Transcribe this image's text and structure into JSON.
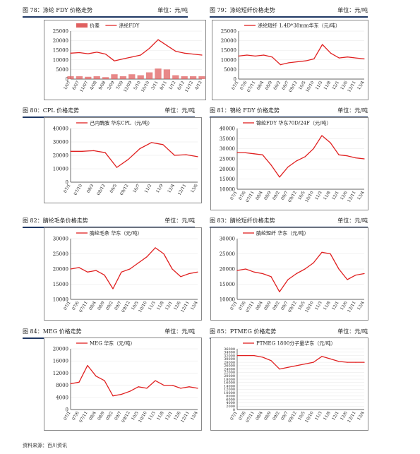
{
  "source": "资料来源：百川资讯",
  "colors": {
    "series": "#e02020",
    "bars": "#e06060",
    "frame": "#888888",
    "heading_rule": "#1f3864"
  },
  "captions": [
    {
      "title": "图 78：涤纶 FDY 价格走势",
      "unit": "单位：元/吨"
    },
    {
      "title": "图 79：涤纶短纤价格走势",
      "unit": "单位：元/吨"
    },
    {
      "title": "图 80：CPL 价格走势",
      "unit": "单位：元/吨"
    },
    {
      "title": "图 81：锦纶 FDY 价格走势",
      "unit": "单位：元/吨"
    },
    {
      "title": "图 82：腈纶毛条价格走势",
      "unit": "单位：元/吨"
    },
    {
      "title": "图 83：腈纶短纤价格走势",
      "unit": "单位：元/吨"
    },
    {
      "title": "图 84：MEG 价格走势",
      "unit": "单位：元/吨"
    },
    {
      "title": "图 85：PTMEG 价格走势",
      "unit": "单位：元/吨"
    }
  ],
  "chart_data": [
    {
      "type": "line",
      "legend": [
        "价差",
        "涤纶FDY"
      ],
      "ylim": [
        0,
        25000
      ],
      "yticks": [
        "25000",
        "20000",
        "15000",
        "10000",
        "5000",
        "0"
      ],
      "xticks": [
        "1/07",
        "6/07",
        "11/07",
        "4/08",
        "9/08",
        "2/09",
        "7/09",
        "12/09",
        "5/10",
        "10/10",
        "3/11",
        "8/11",
        "1/12",
        "6/12",
        "11/12",
        "4/13"
      ],
      "x": [
        "1/07",
        "6/07",
        "11/07",
        "4/08",
        "9/08",
        "2/09",
        "7/09",
        "12/09",
        "5/10",
        "10/10",
        "3/11",
        "8/11",
        "1/12",
        "6/12",
        "11/12",
        "4/13"
      ],
      "series": [
        {
          "name": "涤纶FDY",
          "values": [
            13500,
            13800,
            13200,
            14000,
            13000,
            9500,
            10500,
            11500,
            12500,
            16000,
            20500,
            17500,
            14500,
            13500,
            13000,
            12500
          ]
        },
        {
          "name": "价差",
          "values": [
            1500,
            1500,
            1200,
            1500,
            1000,
            2500,
            1500,
            2500,
            2000,
            3500,
            5500,
            5000,
            2000,
            1500,
            1500,
            1500
          ]
        }
      ]
    },
    {
      "type": "line",
      "legend": [
        "涤纶短纤 1.4D*38mm华东（元/吨）"
      ],
      "ylim": [
        0,
        25000
      ],
      "yticks": [
        "25000",
        "20000",
        "15000",
        "10000",
        "5000",
        "0"
      ],
      "xticks": [
        "07/1",
        "07/6",
        "07/11",
        "08/4",
        "08/9",
        "09/2",
        "09/7",
        "09/12",
        "10/5",
        "10/10",
        "11/3",
        "11/8",
        "12/1",
        "12/6",
        "12/11",
        "13/4"
      ],
      "x": [
        "07/1",
        "07/6",
        "07/11",
        "08/4",
        "08/9",
        "09/2",
        "09/7",
        "09/12",
        "10/5",
        "10/10",
        "11/3",
        "11/8",
        "12/1",
        "12/6",
        "12/11",
        "13/4"
      ],
      "series": [
        {
          "name": "涤纶短纤 1.4D*38mm华东（元/吨）",
          "values": [
            12000,
            12500,
            12000,
            12500,
            11500,
            7500,
            8500,
            9000,
            9500,
            10500,
            18000,
            13500,
            11000,
            11500,
            11000,
            10500
          ]
        }
      ]
    },
    {
      "type": "line",
      "legend": [
        "己内酰胺 华东CPL（元/吨）"
      ],
      "ylim": [
        0,
        40000
      ],
      "yticks": [
        "40000",
        "30000",
        "20000",
        "10000",
        "0"
      ],
      "xticks": [
        "07/1",
        "07/10",
        "08/3",
        "08/12",
        "09/5",
        "09/12",
        "10/7",
        "11/2",
        "11/9",
        "12/4",
        "12/11",
        "13/6"
      ],
      "x": [
        "07/1",
        "07/10",
        "08/3",
        "08/12",
        "09/5",
        "09/12",
        "10/7",
        "11/2",
        "11/9",
        "12/4",
        "12/11",
        "13/6"
      ],
      "series": [
        {
          "name": "己内酰胺 华东CPL（元/吨）",
          "values": [
            23000,
            23000,
            23500,
            22000,
            11000,
            17000,
            25000,
            29500,
            28000,
            20000,
            20500,
            19000
          ]
        }
      ]
    },
    {
      "type": "line",
      "legend": [
        "锦纶FDY 华东70D/24F（元/吨）"
      ],
      "ylim": [
        10000,
        40000
      ],
      "yticks": [
        "40000",
        "35000",
        "30000",
        "25000",
        "20000",
        "15000",
        "10000"
      ],
      "xticks": [
        "07/1",
        "07/6",
        "07/11",
        "08/4",
        "08/9",
        "09/2",
        "09/7",
        "09/12",
        "10/5",
        "10/10",
        "11/3",
        "11/8",
        "12/1",
        "12/6",
        "12/11",
        "13/4"
      ],
      "x": [
        "07/1",
        "07/6",
        "07/11",
        "08/4",
        "08/9",
        "09/2",
        "09/7",
        "09/12",
        "10/5",
        "10/10",
        "11/3",
        "11/8",
        "12/1",
        "12/6",
        "12/11",
        "13/4"
      ],
      "series": [
        {
          "name": "锦纶FDY 华东70D/24F（元/吨）",
          "values": [
            28000,
            28000,
            27500,
            27000,
            22000,
            16000,
            21000,
            24000,
            26000,
            30000,
            36500,
            33000,
            27000,
            26500,
            25500,
            25000
          ]
        }
      ]
    },
    {
      "type": "line",
      "legend": [
        "腈纶毛条 华东（元/吨）"
      ],
      "ylim": [
        10000,
        30000
      ],
      "yticks": [
        "30000",
        "25000",
        "20000",
        "15000",
        "10000"
      ],
      "xticks": [
        "07/1",
        "07/6",
        "07/11",
        "08/4",
        "08/9",
        "09/2",
        "09/7",
        "09/12",
        "10/5",
        "10/10",
        "11/3",
        "11/8",
        "12/1",
        "12/6",
        "12/11",
        "13/4"
      ],
      "x": [
        "07/1",
        "07/6",
        "07/11",
        "08/4",
        "08/9",
        "09/2",
        "09/7",
        "09/12",
        "10/5",
        "10/10",
        "11/3",
        "11/8",
        "12/1",
        "12/6",
        "12/11",
        "13/4"
      ],
      "series": [
        {
          "name": "腈纶毛条 华东（元/吨）",
          "values": [
            20000,
            20500,
            19000,
            19500,
            18000,
            13500,
            19000,
            20000,
            22000,
            24000,
            27000,
            25000,
            20000,
            17500,
            18500,
            19000
          ]
        }
      ]
    },
    {
      "type": "line",
      "legend": [
        "腈纶短纤 华东（元/吨）"
      ],
      "ylim": [
        10000,
        30000
      ],
      "yticks": [
        "30000",
        "25000",
        "20000",
        "15000",
        "10000"
      ],
      "xticks": [
        "07/1",
        "07/6",
        "07/11",
        "08/4",
        "08/9",
        "09/2",
        "09/7",
        "09/12",
        "10/5",
        "10/10",
        "11/3",
        "11/8",
        "12/1",
        "12/6",
        "12/11",
        "13/4"
      ],
      "x": [
        "07/1",
        "07/6",
        "07/11",
        "08/4",
        "08/9",
        "09/2",
        "09/7",
        "09/12",
        "10/5",
        "10/10",
        "11/3",
        "11/8",
        "12/1",
        "12/6",
        "12/11",
        "13/4"
      ],
      "series": [
        {
          "name": "腈纶短纤 华东（元/吨）",
          "values": [
            19500,
            20000,
            19000,
            18500,
            17500,
            12500,
            16500,
            18500,
            20000,
            22000,
            25500,
            25000,
            20000,
            16500,
            18000,
            18500
          ]
        }
      ]
    },
    {
      "type": "line",
      "legend": [
        "MEG 华东（元/吨）"
      ],
      "ylim": [
        0,
        20000
      ],
      "yticks": [
        "20000",
        "16000",
        "12000",
        "8000",
        "4000",
        "0"
      ],
      "xticks": [
        "07/1",
        "07/6",
        "07/11",
        "08/4",
        "08/9",
        "09/2",
        "09/7",
        "09/12",
        "10/5",
        "10/10",
        "11/3",
        "11/8",
        "12/1",
        "12/6",
        "12/11",
        "13/4"
      ],
      "x": [
        "07/1",
        "07/6",
        "07/11",
        "08/4",
        "08/9",
        "09/2",
        "09/7",
        "09/12",
        "10/5",
        "10/10",
        "11/3",
        "11/8",
        "12/1",
        "12/6",
        "12/11",
        "13/4"
      ],
      "series": [
        {
          "name": "MEG 华东（元/吨）",
          "values": [
            8500,
            9000,
            14500,
            11000,
            9500,
            4500,
            5000,
            6000,
            7500,
            7000,
            9500,
            8000,
            8000,
            7000,
            7500,
            7000
          ]
        }
      ]
    },
    {
      "type": "line",
      "legend": [
        "PTMEG 1800分子量华东（元/吨）"
      ],
      "ylim": [
        0,
        36000
      ],
      "yticks": [
        "36000",
        "34000",
        "32000",
        "30000",
        "28000",
        "26000",
        "24000",
        "22000",
        "20000",
        "18000",
        "16000",
        "14000",
        "12000",
        "10000",
        "8000",
        "6000",
        "4000",
        "2000",
        "0"
      ],
      "xticks": [
        "07/1",
        "07/6",
        "07/11",
        "08/4",
        "08/9",
        "09/2",
        "09/7",
        "09/12",
        "10/5",
        "10/10",
        "11/3",
        "11/8",
        "12/1",
        "12/6",
        "12/11",
        "13/4"
      ],
      "x": [
        "07/1",
        "07/6",
        "07/11",
        "08/4",
        "08/9",
        "09/2",
        "09/7",
        "09/12",
        "10/5",
        "10/10",
        "11/3",
        "11/8",
        "12/1",
        "12/6",
        "12/11",
        "13/4"
      ],
      "series": [
        {
          "name": "PTMEG 1800分子量华东（元/吨）",
          "values": [
            32000,
            32000,
            32000,
            31000,
            29000,
            24000,
            25000,
            26000,
            27000,
            28000,
            31500,
            30000,
            28500,
            28000,
            28000,
            28000
          ]
        }
      ]
    }
  ]
}
